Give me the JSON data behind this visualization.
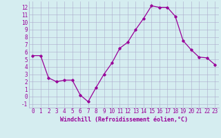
{
  "x": [
    0,
    1,
    2,
    3,
    4,
    5,
    6,
    7,
    8,
    9,
    10,
    11,
    12,
    13,
    14,
    15,
    16,
    17,
    18,
    19,
    20,
    21,
    22,
    23
  ],
  "y": [
    5.5,
    5.5,
    2.5,
    2.0,
    2.2,
    2.2,
    0.2,
    -0.7,
    1.2,
    3.0,
    4.5,
    6.5,
    7.3,
    9.0,
    10.5,
    12.2,
    12.0,
    12.0,
    10.8,
    7.5,
    6.3,
    5.3,
    5.2,
    4.3
  ],
  "xlabel": "Windchill (Refroidissement éolien,°C)",
  "xlim": [
    -0.5,
    23.5
  ],
  "ylim": [
    -1.5,
    12.8
  ],
  "yticks": [
    -1,
    0,
    1,
    2,
    3,
    4,
    5,
    6,
    7,
    8,
    9,
    10,
    11,
    12
  ],
  "xticks": [
    0,
    1,
    2,
    3,
    4,
    5,
    6,
    7,
    8,
    9,
    10,
    11,
    12,
    13,
    14,
    15,
    16,
    17,
    18,
    19,
    20,
    21,
    22,
    23
  ],
  "line_color": "#990099",
  "marker": "D",
  "marker_size": 1.8,
  "bg_color": "#d5edf0",
  "grid_color": "#aaaacc",
  "xlabel_fontsize": 6.0,
  "tick_fontsize": 5.5,
  "line_width": 0.9
}
